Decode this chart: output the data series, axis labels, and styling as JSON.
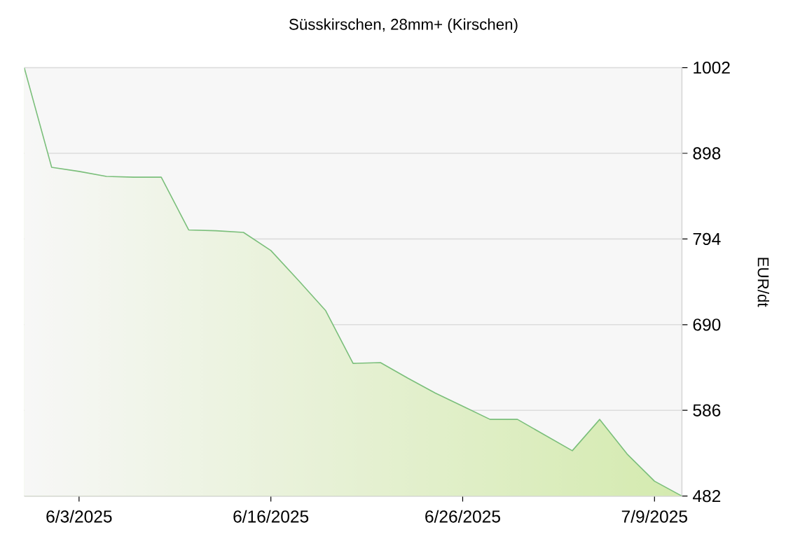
{
  "chart_data": {
    "type": "area",
    "title": "Süsskirschen, 28mm+ (Kirschen)",
    "ylabel": "EUR/dt",
    "categories": [
      null,
      null,
      "6/3/2025",
      null,
      null,
      null,
      null,
      null,
      null,
      "6/16/2025",
      null,
      null,
      null,
      null,
      null,
      null,
      "6/26/2025",
      null,
      null,
      null,
      null,
      null,
      null,
      "7/9/2025",
      null
    ],
    "values": [
      1002,
      881,
      876,
      870,
      869,
      869,
      805,
      804,
      802,
      780,
      744,
      707,
      643,
      644,
      625,
      607,
      591,
      575,
      575,
      556,
      537,
      575,
      533,
      500,
      482
    ],
    "color": "#7bbf7b",
    "ylim": [
      482,
      1002
    ],
    "yticks": [
      482,
      586,
      690,
      794,
      898,
      1002
    ],
    "grid": "y"
  }
}
